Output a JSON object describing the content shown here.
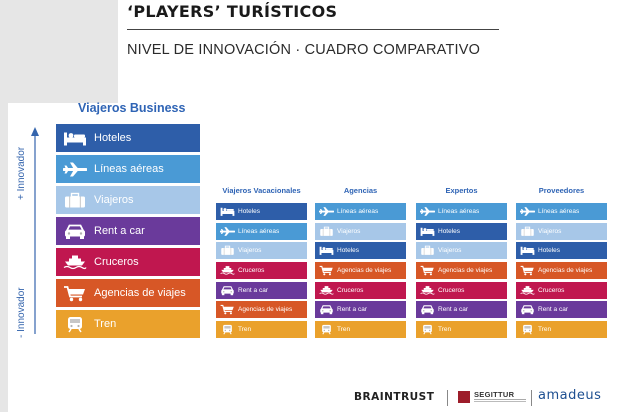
{
  "header": {
    "title": "‘PLAYERS’ TURÍSTICOS",
    "subtitle": "NIVEL DE INNOVACIÓN  · CUADRO COMPARATIVO"
  },
  "axis": {
    "top_label": "+ Innovador",
    "bottom_label": "- Innovador"
  },
  "colors": {
    "hoteles": "#2e5ea9",
    "lineas": "#4a9ad5",
    "viajeros": "#a7c7e8",
    "rentacar": "#6a3a9b",
    "cruceros": "#c0174f",
    "agencias": "#d75726",
    "tren": "#eaa12c"
  },
  "main": {
    "title": "Viajeros Business",
    "items": [
      {
        "label": "Hoteles",
        "key": "hoteles",
        "icon": "bed-icon"
      },
      {
        "label": "Líneas aéreas",
        "key": "lineas",
        "icon": "airplane-icon"
      },
      {
        "label": "Viajeros",
        "key": "viajeros",
        "icon": "suitcase-icon"
      },
      {
        "label": "Rent a car",
        "key": "rentacar",
        "icon": "car-icon"
      },
      {
        "label": "Cruceros",
        "key": "cruceros",
        "icon": "ship-icon"
      },
      {
        "label": "Agencias de viajes",
        "key": "agencias",
        "icon": "cart-icon"
      },
      {
        "label": "Tren",
        "key": "tren",
        "icon": "train-icon"
      }
    ]
  },
  "columns": [
    {
      "title": "Viajeros Vacacionales",
      "items": [
        {
          "label": "Hoteles",
          "key": "hoteles",
          "icon": "bed-icon"
        },
        {
          "label": "Líneas aéreas",
          "key": "lineas",
          "icon": "airplane-icon"
        },
        {
          "label": "Viajeros",
          "key": "viajeros",
          "icon": "suitcase-icon"
        },
        {
          "label": "Cruceros",
          "key": "cruceros",
          "icon": "ship-icon"
        },
        {
          "label": "Rent a car",
          "key": "rentacar",
          "icon": "car-icon"
        },
        {
          "label": "Agencias de viajes",
          "key": "agencias",
          "icon": "cart-icon"
        },
        {
          "label": "Tren",
          "key": "tren",
          "icon": "train-icon"
        }
      ]
    },
    {
      "title": "Agencias",
      "items": [
        {
          "label": "Líneas aéreas",
          "key": "lineas",
          "icon": "airplane-icon"
        },
        {
          "label": "Viajeros",
          "key": "viajeros",
          "icon": "suitcase-icon"
        },
        {
          "label": "Hoteles",
          "key": "hoteles",
          "icon": "bed-icon"
        },
        {
          "label": "Agencias de viajes",
          "key": "agencias",
          "icon": "cart-icon"
        },
        {
          "label": "Cruceros",
          "key": "cruceros",
          "icon": "ship-icon"
        },
        {
          "label": "Rent a car",
          "key": "rentacar",
          "icon": "car-icon"
        },
        {
          "label": "Tren",
          "key": "tren",
          "icon": "train-icon"
        }
      ]
    },
    {
      "title": "Expertos",
      "items": [
        {
          "label": "Líneas aéreas",
          "key": "lineas",
          "icon": "airplane-icon"
        },
        {
          "label": "Hoteles",
          "key": "hoteles",
          "icon": "bed-icon"
        },
        {
          "label": "Viajeros",
          "key": "viajeros",
          "icon": "suitcase-icon"
        },
        {
          "label": "Agencias de viajes",
          "key": "agencias",
          "icon": "cart-icon"
        },
        {
          "label": "Cruceros",
          "key": "cruceros",
          "icon": "ship-icon"
        },
        {
          "label": "Rent a car",
          "key": "rentacar",
          "icon": "car-icon"
        },
        {
          "label": "Tren",
          "key": "tren",
          "icon": "train-icon"
        }
      ]
    },
    {
      "title": "Proveedores",
      "items": [
        {
          "label": "Líneas aéreas",
          "key": "lineas",
          "icon": "airplane-icon"
        },
        {
          "label": "Viajeros",
          "key": "viajeros",
          "icon": "suitcase-icon"
        },
        {
          "label": "Hoteles",
          "key": "hoteles",
          "icon": "bed-icon"
        },
        {
          "label": "Agencias de viajes",
          "key": "agencias",
          "icon": "cart-icon"
        },
        {
          "label": "Cruceros",
          "key": "cruceros",
          "icon": "ship-icon"
        },
        {
          "label": "Rent a car",
          "key": "rentacar",
          "icon": "car-icon"
        },
        {
          "label": "Tren",
          "key": "tren",
          "icon": "train-icon"
        }
      ]
    }
  ],
  "footer": {
    "braintrust": "BRAINTRUST",
    "segittur": "SEGITTUR",
    "amadeus": "amadeus"
  }
}
